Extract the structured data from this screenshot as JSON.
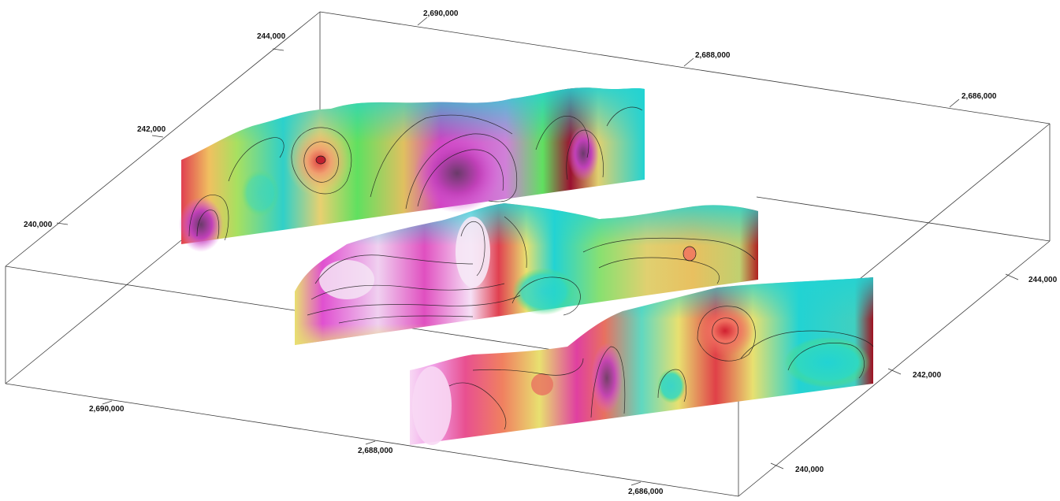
{
  "axis_labels": {
    "top_back": "2,690,000",
    "top_mid": "2,688,000",
    "top_right": "2,686,000",
    "left_244": "244,000",
    "left_242": "242,000",
    "left_240": "240,000",
    "right_244": "244,000",
    "right_242": "242,000",
    "right_240": "240,000",
    "bottom_2690": "2,690,000",
    "bottom_2688": "2,688,000",
    "bottom_2686": "2,686,000"
  },
  "colors": {
    "cyan": "#22d3d3",
    "green": "#5ee05a",
    "yellow": "#e9e57a",
    "orange": "#f08a55",
    "red": "#e0404a",
    "dark_red": "#7a0a14",
    "magenta": "#e860e0",
    "purple": "#7a1f7a",
    "pink": "#f5c8f0"
  }
}
